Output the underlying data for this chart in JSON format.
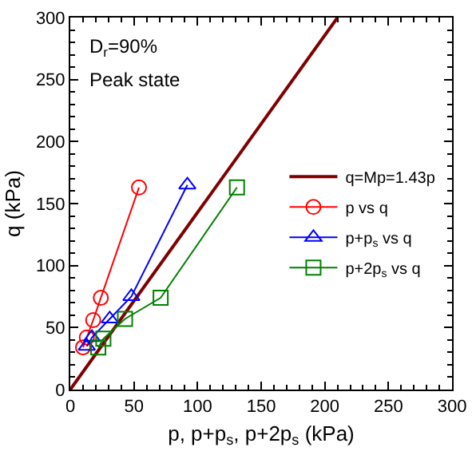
{
  "chart_data": {
    "type": "line",
    "xlabel": "p, p+p$_{s}$, p+2p$_{s}$ (kPa)",
    "ylabel": "q (kPa)",
    "xlim": [
      0,
      300
    ],
    "ylim": [
      0,
      300
    ],
    "xticks": [
      0,
      50,
      100,
      150,
      200,
      250,
      300
    ],
    "yticks": [
      0,
      50,
      100,
      150,
      200,
      250,
      300
    ],
    "grid": false,
    "legend": "right",
    "annotations": [
      "D$_{r}$=90%",
      "Peak state"
    ],
    "series": [
      {
        "name": "q=Mp=1.43p",
        "color": "#800000",
        "x": [
          0,
          210
        ],
        "values": [
          0,
          300
        ],
        "marker": "none"
      },
      {
        "name": "p vs q",
        "color": "#ff0000",
        "x": [
          10,
          13,
          18,
          24,
          54
        ],
        "values": [
          34,
          42,
          56,
          74,
          163
        ],
        "marker": "circle"
      },
      {
        "name": "p+p$_{s}$ vs q",
        "color": "#0000ff",
        "x": [
          13,
          17,
          31,
          48,
          92
        ],
        "values": [
          35,
          42,
          57,
          75,
          165
        ],
        "marker": "triangle"
      },
      {
        "name": "p+2p$_{s}$ vs q",
        "color": "#008000",
        "x": [
          22,
          26,
          43,
          71,
          131
        ],
        "values": [
          34,
          41,
          57,
          74,
          163
        ],
        "marker": "square"
      }
    ]
  }
}
